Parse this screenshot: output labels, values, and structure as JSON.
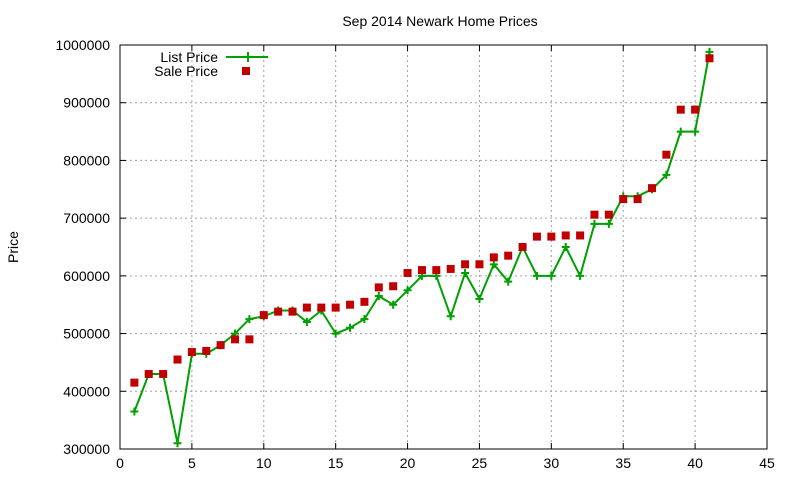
{
  "chart_data": {
    "type": "line",
    "title": "Sep 2014 Newark Home Prices",
    "xlabel": "",
    "ylabel": "Price",
    "xlim": [
      0,
      45
    ],
    "ylim": [
      300000,
      1000000
    ],
    "xticks": [
      0,
      5,
      10,
      15,
      20,
      25,
      30,
      35,
      40,
      45
    ],
    "yticks": [
      300000,
      400000,
      500000,
      600000,
      700000,
      800000,
      900000,
      1000000
    ],
    "grid": true,
    "legend_position": "top-left",
    "series": [
      {
        "name": "List Price",
        "kind": "line-plus",
        "color": "#00a000",
        "x": [
          1,
          2,
          3,
          4,
          5,
          6,
          7,
          8,
          9,
          10,
          11,
          12,
          13,
          14,
          15,
          16,
          17,
          18,
          19,
          20,
          21,
          22,
          23,
          24,
          25,
          26,
          27,
          28,
          29,
          30,
          31,
          32,
          33,
          34,
          35,
          36,
          37,
          38,
          39,
          40,
          41
        ],
        "y": [
          365000,
          430000,
          430000,
          310000,
          465000,
          465000,
          480000,
          500000,
          525000,
          530000,
          540000,
          540000,
          520000,
          540000,
          500000,
          510000,
          525000,
          565000,
          550000,
          575000,
          600000,
          600000,
          530000,
          605000,
          560000,
          620000,
          590000,
          650000,
          600000,
          600000,
          650000,
          600000,
          690000,
          690000,
          738000,
          738000,
          750000,
          775000,
          850000,
          850000,
          988000
        ]
      },
      {
        "name": "Sale Price",
        "kind": "square",
        "color": "#c00000",
        "x": [
          1,
          2,
          3,
          4,
          5,
          6,
          7,
          8,
          9,
          10,
          11,
          12,
          13,
          14,
          15,
          16,
          17,
          18,
          19,
          20,
          21,
          22,
          23,
          24,
          25,
          26,
          27,
          28,
          29,
          30,
          31,
          32,
          33,
          34,
          35,
          36,
          37,
          38,
          39,
          40,
          41
        ],
        "y": [
          415000,
          430000,
          430000,
          455000,
          468000,
          470000,
          480000,
          490000,
          490000,
          532000,
          538000,
          538000,
          545000,
          545000,
          545000,
          550000,
          555000,
          580000,
          582000,
          605000,
          610000,
          610000,
          612000,
          620000,
          620000,
          632000,
          635000,
          650000,
          668000,
          668000,
          670000,
          670000,
          706000,
          706000,
          733000,
          733000,
          752000,
          810000,
          888000,
          888000,
          977000
        ]
      }
    ]
  }
}
